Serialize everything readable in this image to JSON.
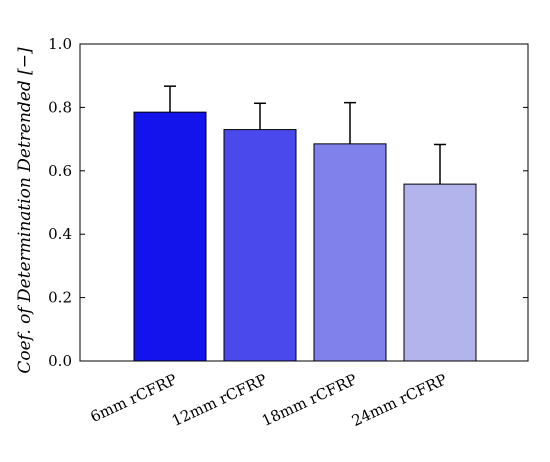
{
  "chart_data": {
    "type": "bar",
    "categories": [
      "6mm rCFRP",
      "12mm rCFRP",
      "18mm rCFRP",
      "24mm rCFRP"
    ],
    "values": [
      0.785,
      0.73,
      0.685,
      0.558
    ],
    "error_upper": [
      0.082,
      0.083,
      0.13,
      0.125
    ],
    "bar_colors": [
      "#1313ec",
      "#4a4aec",
      "#8181ec",
      "#b4b4ec"
    ],
    "ylabel": "Coef. of Determination Detrended [−]",
    "xlabel": "",
    "ylim": [
      0.0,
      1.0
    ],
    "yticks": [
      "0.0",
      "0.2",
      "0.4",
      "0.6",
      "0.8",
      "1.0"
    ],
    "grid": false,
    "legend": "none"
  }
}
